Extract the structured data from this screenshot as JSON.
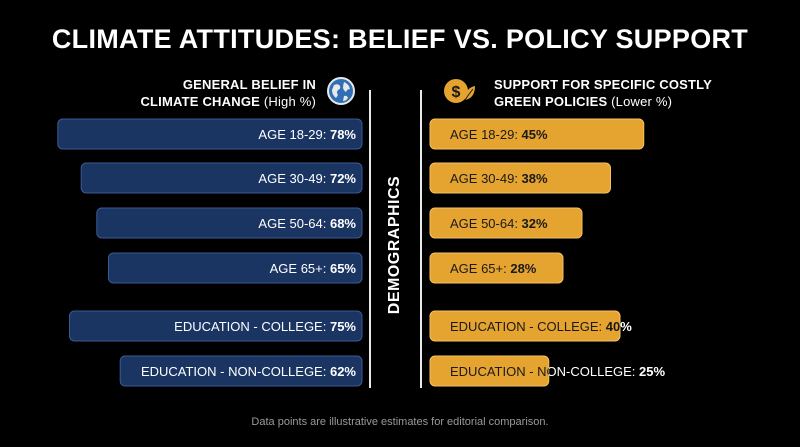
{
  "title": "CLIMATE ATTITUDES: BELIEF VS. POLICY SUPPORT",
  "center_label": "DEMOGRAPHICS",
  "footnote": "Data points are illustrative estimates for editorial comparison.",
  "left_header": {
    "line1": "GENERAL BELIEF IN",
    "line2": "CLIMATE CHANGE",
    "sub": "(High %)",
    "icon": "globe-icon"
  },
  "right_header": {
    "line1": "SUPPORT FOR SPECIFIC COSTLY",
    "line2": "GREEN POLICIES",
    "sub": "(Lower %)",
    "icon": "dollar-leaf-icon"
  },
  "colors": {
    "left_bar": "#1b3563",
    "left_bar_edge": "#3a5a92",
    "right_bar": "#e5a330",
    "right_bar_edge": "#f4c263",
    "right_text": "#1a1a1a"
  },
  "chart_data": {
    "type": "bar",
    "orientation": "horizontal-diverging",
    "categories": [
      "AGE 18-29",
      "AGE 30-49",
      "AGE 50-64",
      "AGE 65+",
      "EDUCATION - COLLEGE",
      "EDUCATION - NON-COLLEGE"
    ],
    "series": [
      {
        "name": "GENERAL BELIEF IN CLIMATE CHANGE (High %)",
        "values": [
          78,
          72,
          68,
          65,
          75,
          62
        ],
        "labels": [
          "78%",
          "72%",
          "68%",
          "65%",
          "75%",
          "62%"
        ]
      },
      {
        "name": "SUPPORT FOR SPECIFIC COSTLY GREEN POLICIES (Lower %)",
        "values": [
          45,
          38,
          32,
          28,
          40,
          25
        ],
        "labels": [
          "45%",
          "38%",
          "32%",
          "28%",
          "40%",
          "25%"
        ]
      }
    ],
    "xlim": [
      0,
      100
    ],
    "grid": false,
    "legend": "none"
  }
}
